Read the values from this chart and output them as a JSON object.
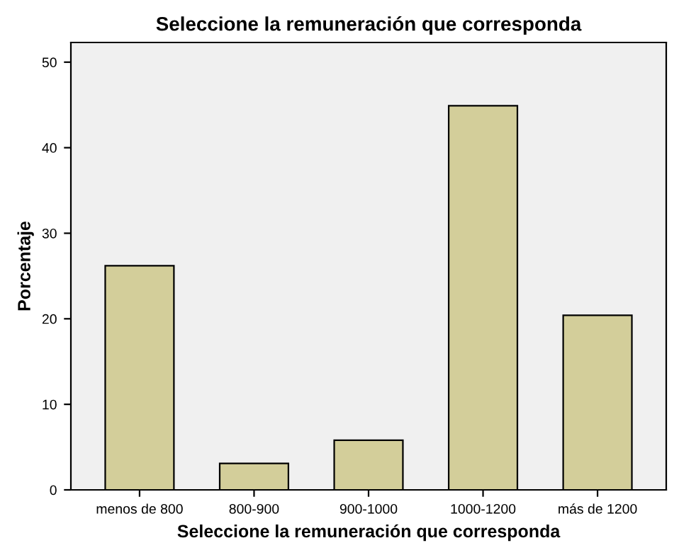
{
  "chart_data": {
    "type": "bar",
    "title": "Seleccione la remuneración que corresponda",
    "xlabel": "Seleccione la remuneración que corresponda",
    "ylabel": "Porcentaje",
    "categories": [
      "menos de 800",
      "800-900",
      "900-1000",
      "1000-1200",
      "más de 1200"
    ],
    "values": [
      26.2,
      3.1,
      5.8,
      44.9,
      20.4
    ],
    "color": "#d3ce9a",
    "ylim": [
      0,
      52.3
    ],
    "yticks": [
      0,
      10,
      20,
      30,
      40,
      50
    ],
    "grid": false,
    "legend": false
  }
}
